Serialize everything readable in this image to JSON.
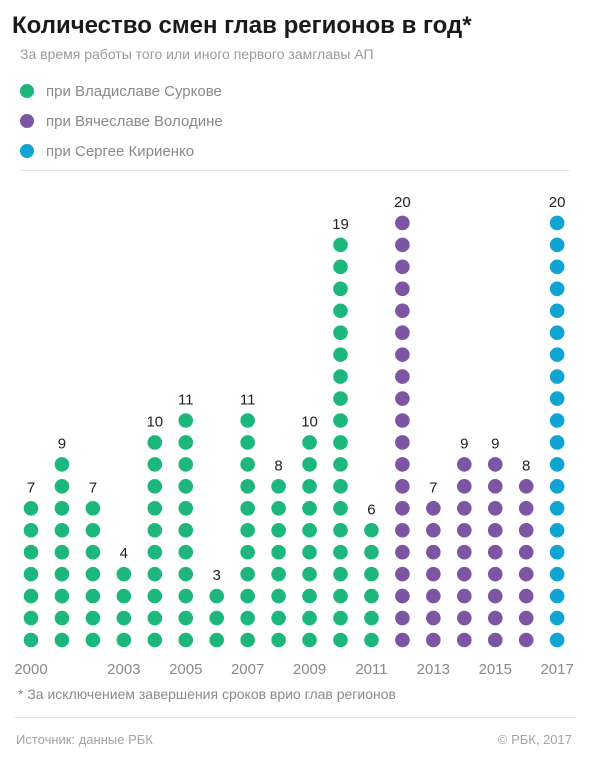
{
  "title": "Количество смен глав регионов в год*",
  "subtitle": "За время работы того или иного первого замглавы АП",
  "legend": [
    {
      "label": "при Владиславе Суркове",
      "color": "#1db77c"
    },
    {
      "label": "при Вячеславе Володине",
      "color": "#7c55a3"
    },
    {
      "label": "при Сергее Кириенко",
      "color": "#0fa4d2"
    }
  ],
  "footnote": "* За исключением завершения сроков врио глав регионов",
  "source": "Источник: данные РБК",
  "copyright": "© РБК, 2017",
  "chart_data": {
    "type": "bar",
    "title": "Количество смен глав регионов в год*",
    "subtitle": "За время работы того или иного первого замглавы АП",
    "categories": [
      "2000",
      "2001",
      "2002",
      "2003",
      "2004",
      "2005",
      "2006",
      "2007",
      "2008",
      "2009",
      "2010",
      "2011",
      "2012",
      "2013",
      "2014",
      "2015",
      "2016",
      "2017"
    ],
    "x_tick_labels": [
      "2000",
      "2003",
      "2005",
      "2007",
      "2009",
      "2011",
      "2013",
      "2015",
      "2017"
    ],
    "values": [
      7,
      9,
      7,
      4,
      10,
      11,
      3,
      11,
      8,
      10,
      19,
      6,
      20,
      7,
      9,
      9,
      8,
      20
    ],
    "series_colors": [
      "#1db77c",
      "#1db77c",
      "#1db77c",
      "#1db77c",
      "#1db77c",
      "#1db77c",
      "#1db77c",
      "#1db77c",
      "#1db77c",
      "#1db77c",
      "#1db77c",
      "#1db77c",
      "#7c55a3",
      "#7c55a3",
      "#7c55a3",
      "#7c55a3",
      "#7c55a3",
      "#0fa4d2"
    ],
    "mark": "dot-stack",
    "grid": false,
    "legend_position": "top-left"
  }
}
